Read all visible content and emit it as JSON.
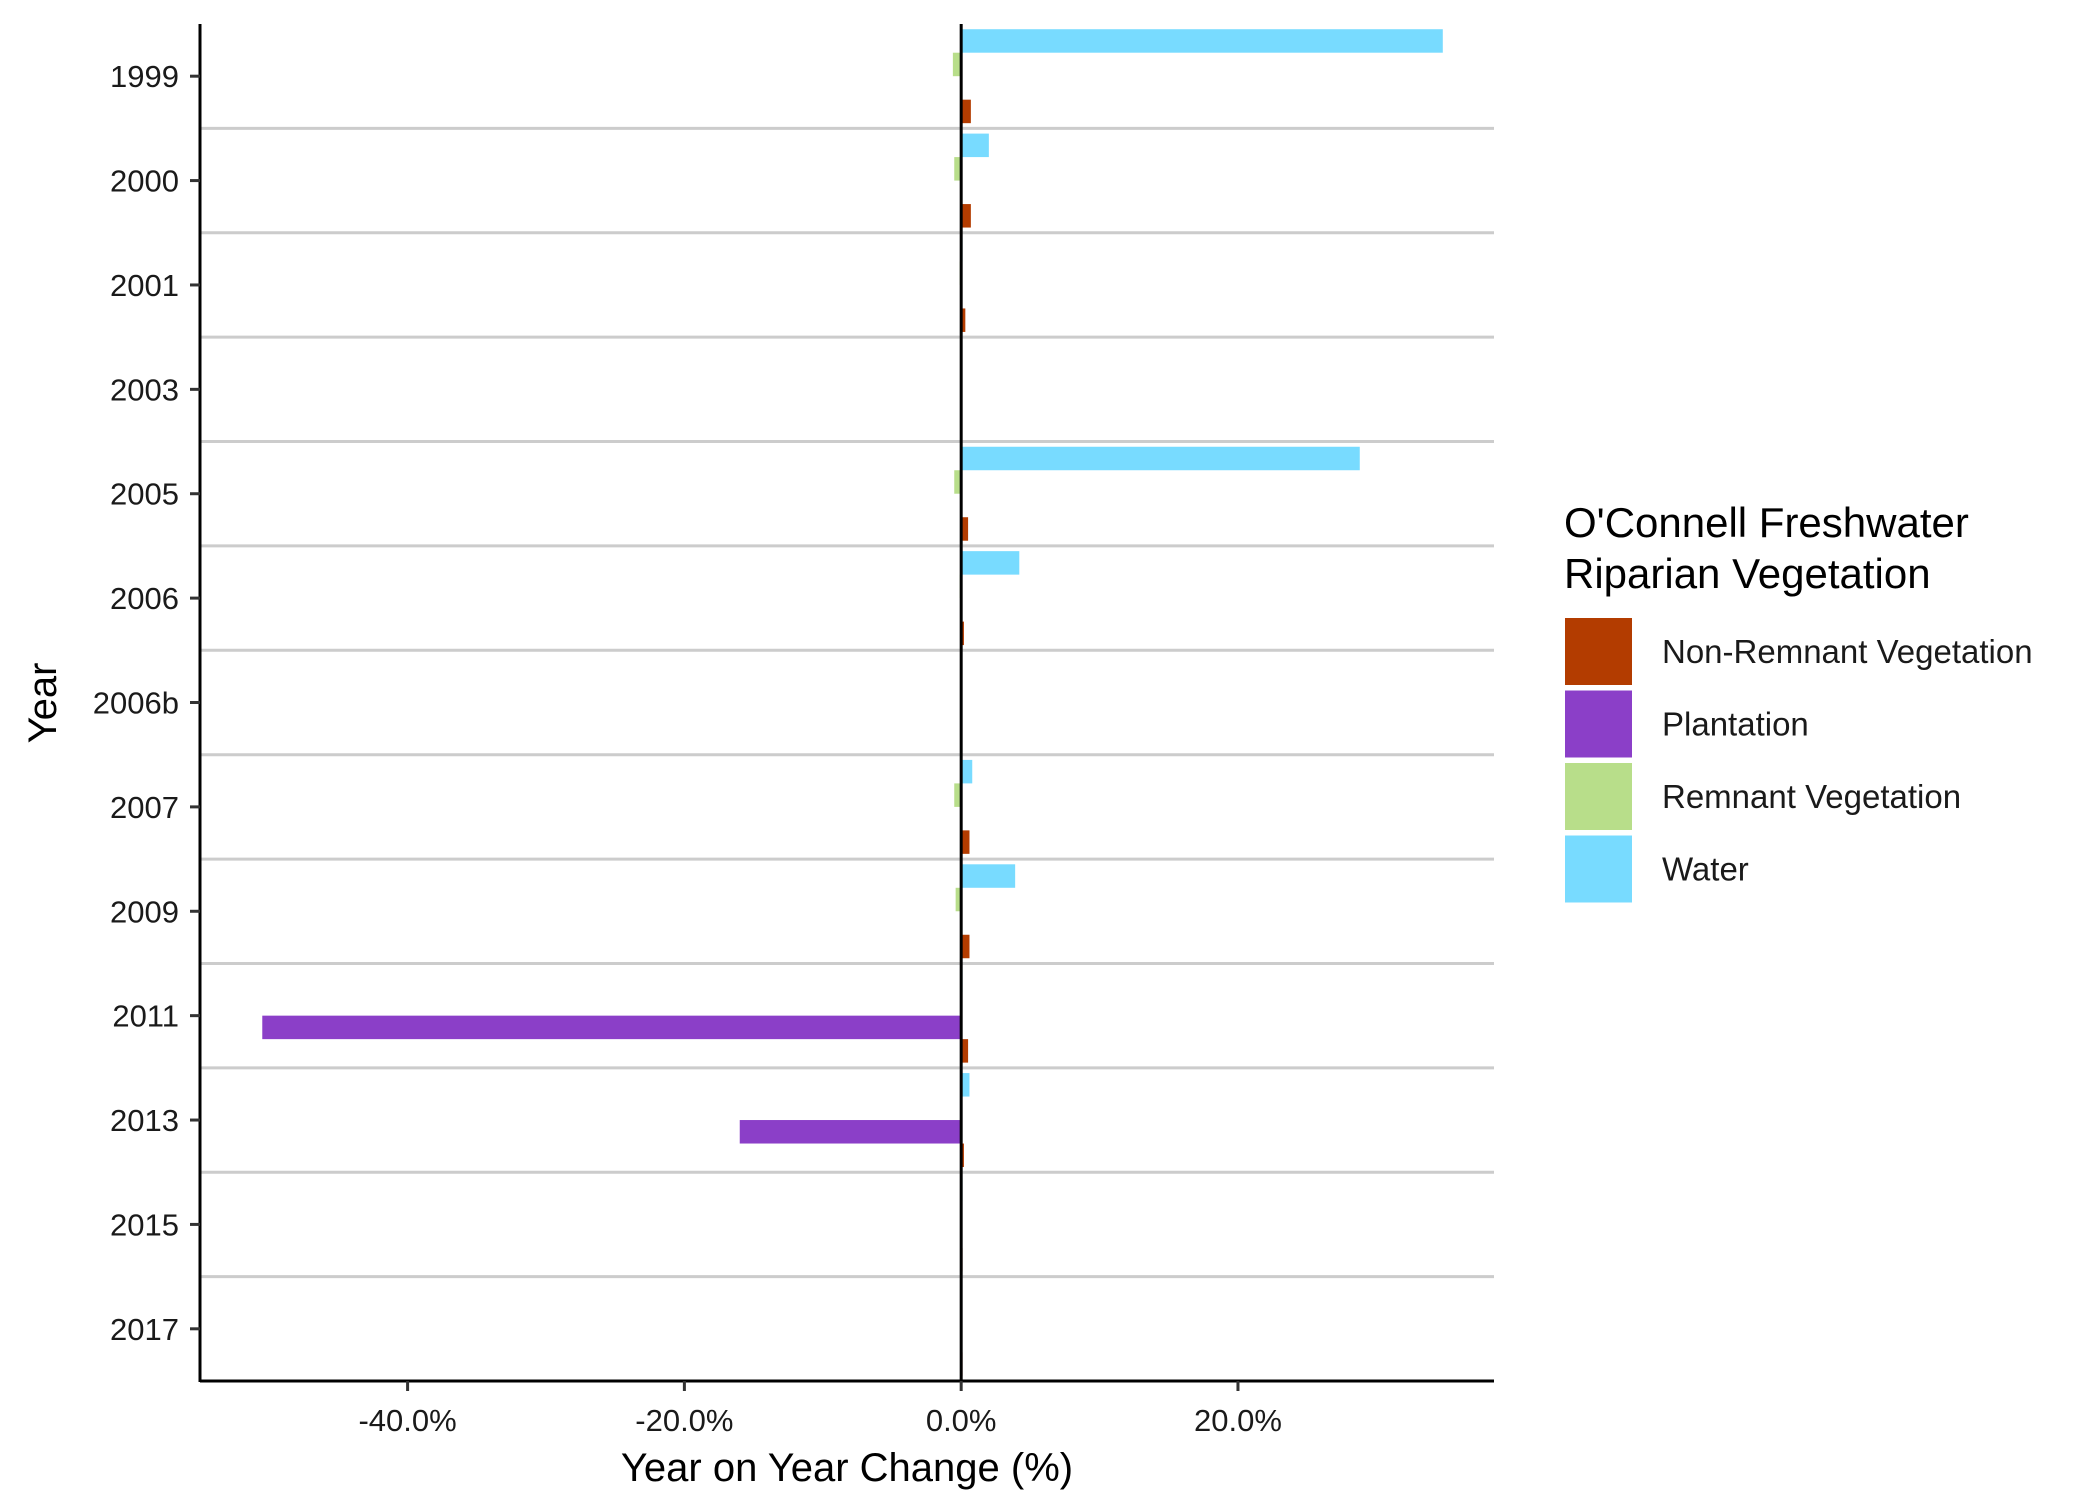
{
  "chart_data": {
    "type": "bar",
    "orientation": "horizontal",
    "categories": [
      "1999",
      "2000",
      "2001",
      "2003",
      "2005",
      "2006",
      "2006b",
      "2007",
      "2009",
      "2011",
      "2013",
      "2015",
      "2017"
    ],
    "series": [
      {
        "name": "Non-Remnant Vegetation",
        "color": "#B33C00",
        "values": [
          0.7,
          0.7,
          0.3,
          0,
          0.5,
          0.2,
          0,
          0.6,
          0.6,
          0.5,
          0.2,
          0.1,
          0.1
        ]
      },
      {
        "name": "Plantation",
        "color": "#8B3FC8",
        "values": [
          0,
          0,
          0,
          0,
          0,
          0,
          0,
          0,
          0,
          -50.5,
          -16.0,
          0,
          0
        ]
      },
      {
        "name": "Remnant Vegetation",
        "color": "#B8DE8A",
        "values": [
          -0.6,
          -0.5,
          -0.1,
          0,
          -0.5,
          -0.1,
          0,
          -0.5,
          -0.4,
          0,
          0,
          0,
          0
        ]
      },
      {
        "name": "Water",
        "color": "#78DBFF",
        "values": [
          34.8,
          2.0,
          0.1,
          0,
          28.8,
          4.2,
          0,
          0.8,
          3.9,
          0.1,
          0.6,
          0.1,
          0
        ]
      }
    ],
    "xlabel": "Year on Year Change (%)",
    "ylabel": "Year",
    "xlim": [
      -55,
      38.5
    ],
    "xticks": [
      -40,
      -20,
      0,
      20
    ],
    "xtick_labels": [
      "-40.0%",
      "-20.0%",
      "0.0%",
      "20.0%"
    ],
    "legend_title_lines": [
      "O'Connell Freshwater",
      "Riparian Vegetation"
    ],
    "legend_position": "right",
    "grid": "horizontal separators between years"
  }
}
